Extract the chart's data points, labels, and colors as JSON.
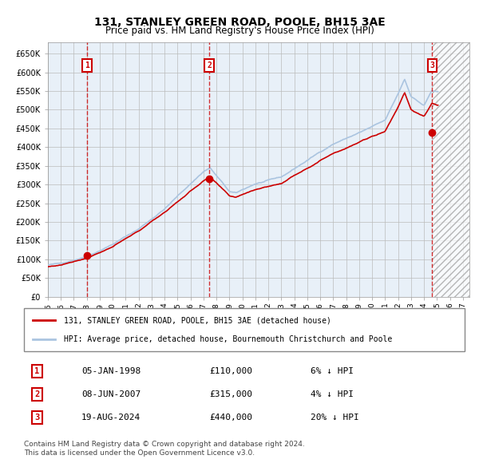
{
  "title": "131, STANLEY GREEN ROAD, POOLE, BH15 3AE",
  "subtitle": "Price paid vs. HM Land Registry's House Price Index (HPI)",
  "legend_house": "131, STANLEY GREEN ROAD, POOLE, BH15 3AE (detached house)",
  "legend_hpi": "HPI: Average price, detached house, Bournemouth Christchurch and Poole",
  "footnote1": "Contains HM Land Registry data © Crown copyright and database right 2024.",
  "footnote2": "This data is licensed under the Open Government Licence v3.0.",
  "sale_events": [
    {
      "num": 1,
      "date": "05-JAN-1998",
      "price": 110000,
      "pct": "6%",
      "dir": "↓",
      "x_year": 1998.01
    },
    {
      "num": 2,
      "date": "08-JUN-2007",
      "price": 315000,
      "pct": "4%",
      "dir": "↓",
      "x_year": 2007.44
    },
    {
      "num": 3,
      "date": "19-AUG-2024",
      "price": 440000,
      "pct": "20%",
      "dir": "↓",
      "x_year": 2024.63
    }
  ],
  "ylim": [
    0,
    680000
  ],
  "xlim_start": 1995.0,
  "xlim_end": 2027.5,
  "hpi_color": "#aac4e0",
  "house_color": "#cc0000",
  "bg_color": "#ddeeff",
  "plot_bg": "#e8f0f8",
  "hatch_color": "#cccccc",
  "grid_color": "#bbbbbb",
  "vline_color": "#cc0000",
  "label_box_color": "#cc0000",
  "future_start": 2024.63
}
